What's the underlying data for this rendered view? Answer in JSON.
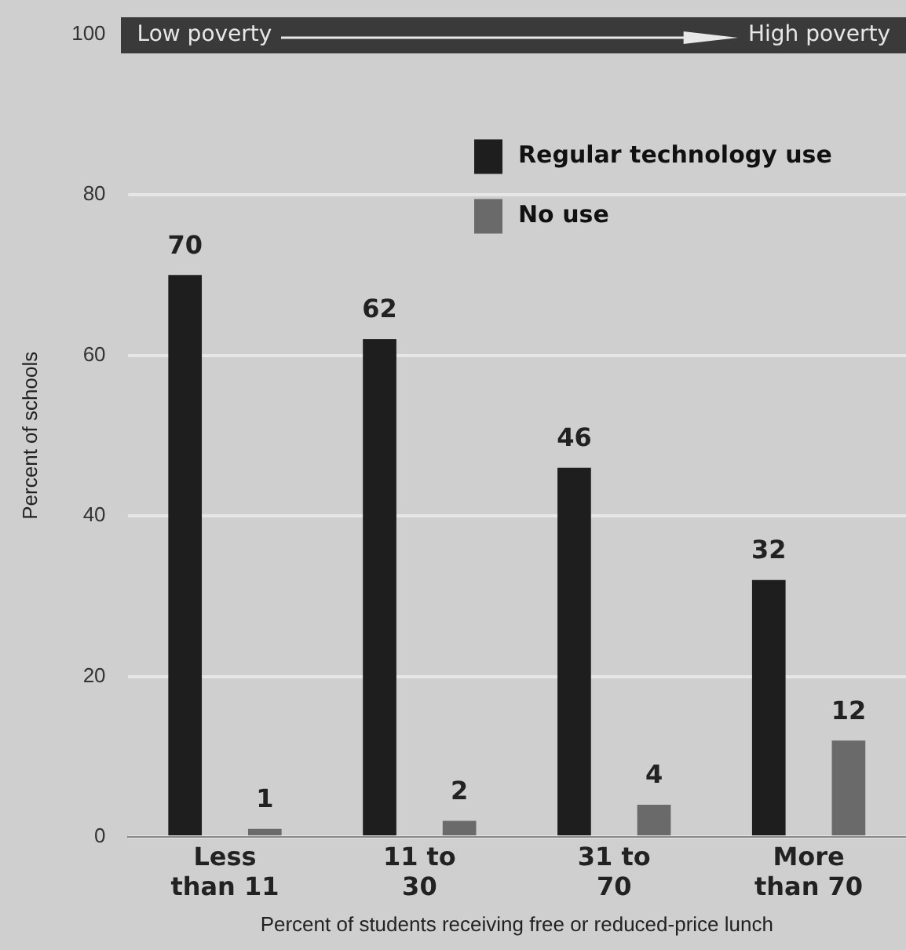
{
  "chart_data": {
    "type": "bar",
    "xlabel": "Percent of students receiving free or reduced-price lunch",
    "ylabel": "Percent of schools",
    "categories": [
      "Less\nthan 11",
      "11 to\n30",
      "31 to\n70",
      "More\nthan 70"
    ],
    "series": [
      {
        "name": "Regular technology use",
        "color": "#1e1e1e",
        "values": [
          70,
          62,
          46,
          32
        ]
      },
      {
        "name": "No use",
        "color": "#6a6a6a",
        "values": [
          1,
          2,
          4,
          12
        ]
      }
    ],
    "ylim": [
      0,
      100
    ],
    "yticks": [
      0,
      20,
      40,
      60,
      80,
      100
    ],
    "grid": "y",
    "legend": "top right",
    "data_labels": true,
    "annotations": [
      "Low poverty",
      "High poverty"
    ]
  }
}
